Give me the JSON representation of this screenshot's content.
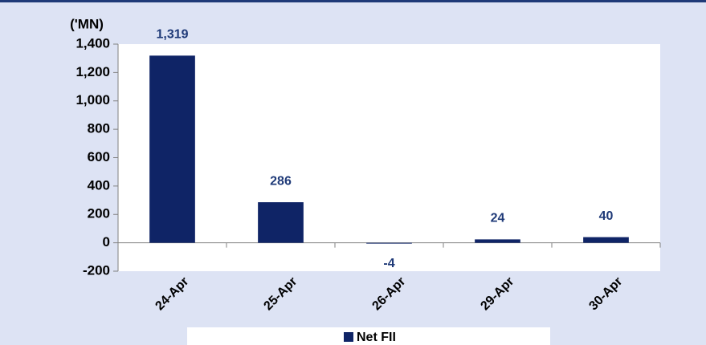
{
  "chart_data": {
    "type": "bar",
    "y_axis_label": "('MN)",
    "categories": [
      "24-Apr",
      "25-Apr",
      "26-Apr",
      "29-Apr",
      "30-Apr"
    ],
    "series": [
      {
        "name": "Net FII",
        "color": "#0f2466",
        "values": [
          1319,
          286,
          -4,
          24,
          40
        ],
        "value_labels": [
          "1,319",
          "286",
          "-4",
          "24",
          "40"
        ]
      }
    ],
    "ylim": [
      -200,
      1400
    ],
    "yticks": [
      -200,
      0,
      200,
      400,
      600,
      800,
      {
        "value": 1000,
        "label": "1,000"
      },
      {
        "value": 1200,
        "label": "1,200"
      },
      {
        "value": 1400,
        "label": "1,400"
      }
    ],
    "legend": "bottom"
  }
}
